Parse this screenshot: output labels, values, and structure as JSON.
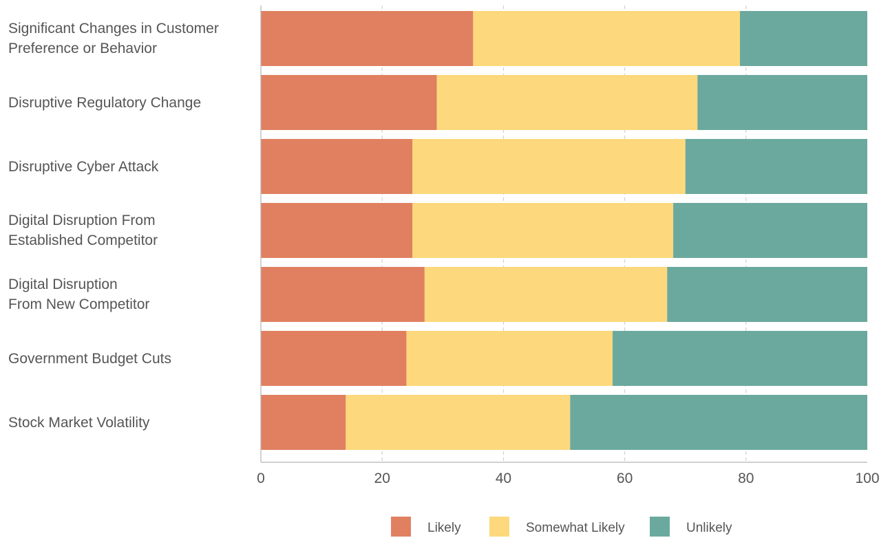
{
  "chart_data": {
    "type": "bar",
    "orientation": "horizontal",
    "stacked": true,
    "title": "",
    "xlabel": "",
    "ylabel": "",
    "xlim": [
      0,
      100
    ],
    "x_ticks": [
      "0",
      "20",
      "40",
      "60",
      "80",
      "100"
    ],
    "grid": "vertical dashed",
    "legend_position": "bottom-center",
    "categories": [
      [
        "Significant Changes in Customer",
        "Preference or Behavior"
      ],
      [
        "Disruptive Regulatory Change"
      ],
      [
        "Disruptive Cyber Attack"
      ],
      [
        "Digital Disruption From",
        "Established Competitor"
      ],
      [
        "Digital Disruption",
        "From New Competitor"
      ],
      [
        "Government Budget Cuts"
      ],
      [
        "Stock Market Volatility"
      ]
    ],
    "series": [
      {
        "name": "Likely",
        "color": "#E08060",
        "values": [
          35,
          29,
          25,
          25,
          27,
          24,
          14
        ]
      },
      {
        "name": "Somewhat Likely",
        "color": "#FDD87C",
        "values": [
          44,
          43,
          45,
          43,
          40,
          34,
          37
        ]
      },
      {
        "name": "Unlikely",
        "color": "#6BA99E",
        "values": [
          21,
          28,
          30,
          32,
          33,
          42,
          49
        ]
      }
    ]
  }
}
